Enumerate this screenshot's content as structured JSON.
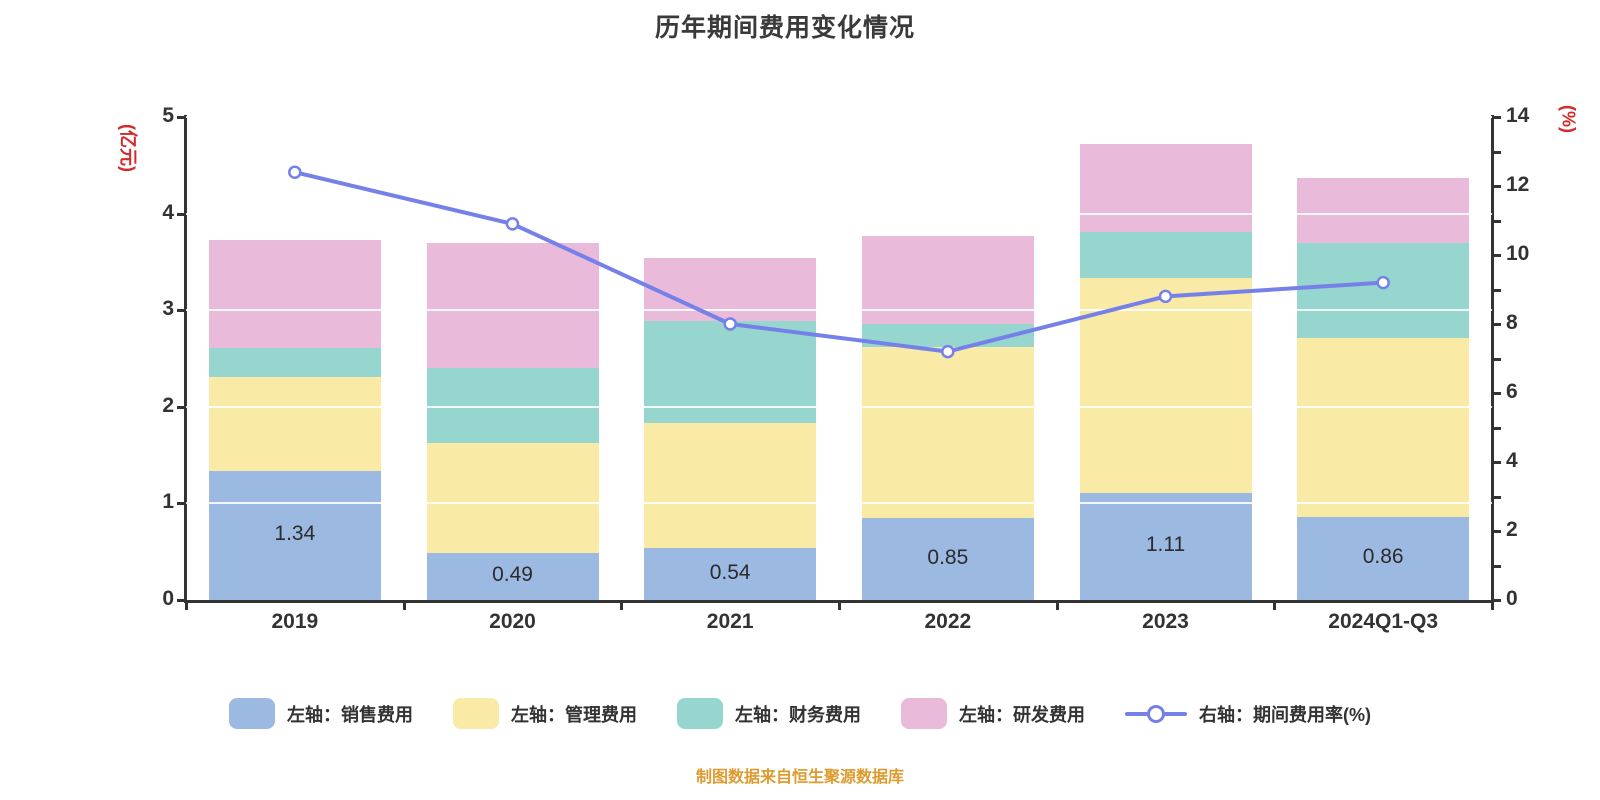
{
  "title": "历年期间费用变化情况",
  "source_note": "制图数据来自恒生聚源数据库",
  "colors": {
    "background": "#ffffff",
    "sales_bar": "#9cb9e2",
    "admin_bar": "#f9eaa6",
    "finance_bar": "#97d6ce",
    "rd_bar": "#e9bada",
    "rate_line": "#7580e8",
    "line_marker_fill": "#ffffff",
    "gridline": "#ffffff",
    "axis_line": "#333333",
    "axis_text": "#333333",
    "axis_unit_text": "#d42a2a",
    "title_text": "#3a3a3a",
    "source_text": "#dd9b30",
    "bar_value_text": "#2b2b2b"
  },
  "left_axis": {
    "unit_label": "(亿元)",
    "min": 0,
    "max": 5,
    "tick_values": [
      0,
      1,
      2,
      3,
      4,
      5
    ],
    "tick_labels": [
      "0",
      "1",
      "2",
      "3",
      "4",
      "5"
    ]
  },
  "right_axis": {
    "unit_label": "(%)",
    "min": 0,
    "max": 14,
    "minor_tick_step": 1,
    "tick_values": [
      0,
      2,
      4,
      6,
      8,
      10,
      12,
      14
    ],
    "tick_labels": [
      "0",
      "2",
      "4",
      "6",
      "8",
      "10",
      "12",
      "14"
    ]
  },
  "x_axis": {
    "categories": [
      "2019",
      "2020",
      "2021",
      "2022",
      "2023",
      "2024Q1-Q3"
    ]
  },
  "legend": {
    "items": [
      {
        "label": "左轴：销售费用",
        "marker": "swatch",
        "color": "#9cb9e2"
      },
      {
        "label": "左轴：管理费用",
        "marker": "swatch",
        "color": "#f9eaa6"
      },
      {
        "label": "左轴：财务费用",
        "marker": "swatch",
        "color": "#97d6ce"
      },
      {
        "label": "左轴：研发费用",
        "marker": "swatch",
        "color": "#e9bada"
      },
      {
        "label": "右轴：期间费用率(%)",
        "marker": "line-dot",
        "color": "#7580e8"
      }
    ]
  },
  "chart_data": {
    "type": "bar",
    "subtype": "stacked-bars-with-line-overlay",
    "title": "历年期间费用变化情况",
    "categories": [
      "2019",
      "2020",
      "2021",
      "2022",
      "2023",
      "2024Q1-Q3"
    ],
    "series": [
      {
        "name": "左轴：销售费用",
        "type": "bar",
        "stack": "total",
        "axis": "left",
        "color": "#9cb9e2",
        "values": [
          1.34,
          0.49,
          0.54,
          0.85,
          1.11,
          0.86
        ],
        "data_labels": [
          "1.34",
          "0.49",
          "0.54",
          "0.85",
          "1.11",
          "0.86"
        ]
      },
      {
        "name": "左轴：管理费用",
        "type": "bar",
        "stack": "total",
        "axis": "left",
        "color": "#f9eaa6",
        "values": [
          0.97,
          1.14,
          1.29,
          1.77,
          2.22,
          1.85
        ]
      },
      {
        "name": "左轴：财务费用",
        "type": "bar",
        "stack": "total",
        "axis": "left",
        "color": "#97d6ce",
        "values": [
          0.3,
          0.77,
          1.06,
          0.24,
          0.48,
          0.99
        ]
      },
      {
        "name": "左轴：研发费用",
        "type": "bar",
        "stack": "total",
        "axis": "left",
        "color": "#e9bada",
        "values": [
          1.12,
          1.3,
          0.65,
          0.91,
          0.91,
          0.67
        ]
      },
      {
        "name": "右轴：期间费用率(%)",
        "type": "line",
        "axis": "right",
        "color": "#7580e8",
        "marker": "circle",
        "values": [
          12.4,
          10.9,
          8.0,
          7.2,
          8.8,
          9.2
        ]
      }
    ],
    "stack_totals": [
      3.73,
      3.7,
      3.54,
      3.77,
      4.72,
      4.37
    ],
    "left_ylim": [
      0,
      5
    ],
    "right_ylim": [
      0,
      14
    ],
    "left_axis_label": "(亿元)",
    "right_axis_label": "(%)",
    "grid": true,
    "legend_position": "bottom"
  }
}
